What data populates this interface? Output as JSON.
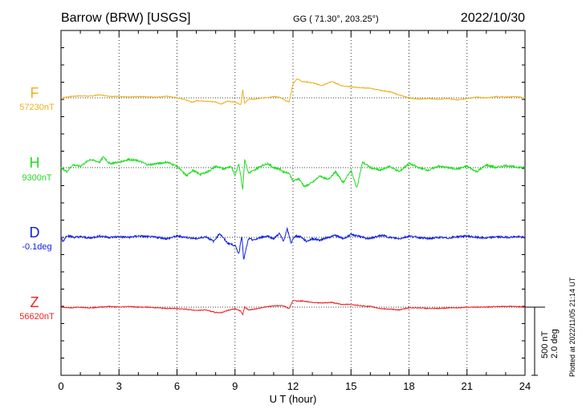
{
  "header": {
    "station": "Barrow (BRW)  [USGS]",
    "coords": "GG ( 71.30°, 203.25°)",
    "date": "2022/10/30"
  },
  "side_note": "Plotted at 2022/11/05 21:14 UT",
  "scale_bar": {
    "line1": "500 nT",
    "line2": "2.0 deg"
  },
  "chart_data": {
    "type": "line",
    "title": "Barrow (BRW)  [USGS]",
    "xlabel": "U T (hour)",
    "xlim": [
      0,
      24
    ],
    "x_ticks": [
      "0",
      "3",
      "6",
      "9",
      "12",
      "15",
      "18",
      "21",
      "24"
    ],
    "grid": true,
    "series": [
      {
        "name": "F",
        "baseline_label": "57230nT",
        "color": "#f0b020",
        "x": [
          0,
          0.5,
          1,
          1.5,
          2,
          2.5,
          3,
          3.5,
          4,
          4.5,
          5,
          5.5,
          6,
          6.5,
          6.8,
          7,
          7.5,
          8,
          8.3,
          8.6,
          9,
          9.3,
          9.4,
          9.5,
          9.7,
          10,
          10.5,
          11,
          11.3,
          11.6,
          11.8,
          12,
          12.2,
          12.5,
          13,
          13.5,
          14,
          14.5,
          15,
          15.5,
          16,
          16.5,
          17,
          17.5,
          18,
          18.5,
          19,
          19.5,
          20,
          20.5,
          21,
          21.5,
          22,
          22.5,
          23,
          23.5,
          24
        ],
        "values": [
          0,
          10,
          15,
          12,
          22,
          12,
          10,
          5,
          10,
          8,
          5,
          12,
          0,
          -15,
          -35,
          -20,
          -25,
          -30,
          -45,
          -25,
          -30,
          -50,
          60,
          -40,
          -10,
          -10,
          0,
          10,
          5,
          -20,
          -30,
          100,
          140,
          120,
          110,
          90,
          120,
          90,
          80,
          75,
          70,
          55,
          45,
          20,
          0,
          -10,
          -5,
          -10,
          -5,
          -15,
          -5,
          5,
          0,
          10,
          5,
          10,
          0
        ]
      },
      {
        "name": "H",
        "baseline_label": "9300nT",
        "color": "#22dd22",
        "x": [
          0,
          0.3,
          0.6,
          1,
          1.5,
          2,
          2.2,
          2.5,
          3,
          3.5,
          4,
          4.5,
          5,
          5.5,
          6,
          6.5,
          6.8,
          7.2,
          7.6,
          8,
          8.4,
          8.8,
          9,
          9.2,
          9.4,
          9.5,
          9.7,
          10,
          10.3,
          10.7,
          11,
          11.3,
          11.5,
          11.8,
          12,
          12.3,
          12.6,
          13,
          13.4,
          13.8,
          14.2,
          14.6,
          15,
          15.3,
          15.6,
          16,
          16.5,
          17,
          17.5,
          18,
          18.5,
          19,
          19.5,
          20,
          20.5,
          21,
          21.5,
          22,
          22.5,
          23,
          23.5,
          24
        ],
        "values": [
          0,
          -30,
          20,
          10,
          60,
          40,
          80,
          30,
          40,
          60,
          50,
          20,
          30,
          40,
          10,
          -60,
          -20,
          -50,
          -30,
          10,
          -10,
          10,
          -60,
          30,
          -160,
          60,
          -40,
          -20,
          10,
          30,
          0,
          -10,
          -30,
          -40,
          -100,
          -80,
          -140,
          -110,
          -60,
          -90,
          -30,
          -110,
          -20,
          -150,
          40,
          0,
          -20,
          10,
          -30,
          30,
          0,
          -20,
          10,
          0,
          -10,
          10,
          -30,
          20,
          0,
          15,
          5,
          0
        ]
      },
      {
        "name": "D",
        "baseline_label": "-0.1deg",
        "color": "#1122dd",
        "x": [
          0,
          0.1,
          0.3,
          0.7,
          1,
          1.5,
          2,
          2.5,
          3,
          3.5,
          4,
          4.5,
          5,
          5.5,
          6,
          6.5,
          7,
          7.5,
          7.9,
          8.2,
          8.6,
          9,
          9.2,
          9.35,
          9.45,
          9.55,
          9.7,
          10,
          10.3,
          10.7,
          11,
          11.3,
          11.5,
          11.7,
          11.9,
          12.1,
          12.4,
          12.7,
          13,
          13.4,
          13.8,
          14.2,
          14.6,
          15,
          15.4,
          15.8,
          16.2,
          16.6,
          17,
          17.5,
          18,
          18.5,
          19,
          19.5,
          20,
          20.5,
          21,
          21.5,
          22,
          22.5,
          23,
          23.5,
          24
        ],
        "values": [
          0,
          -30,
          15,
          0,
          5,
          -5,
          10,
          0,
          5,
          0,
          10,
          5,
          0,
          -10,
          10,
          0,
          -10,
          5,
          -30,
          30,
          -40,
          -60,
          -120,
          20,
          -170,
          -100,
          -10,
          -20,
          0,
          10,
          -10,
          30,
          -30,
          60,
          -40,
          10,
          5,
          -30,
          -10,
          -20,
          0,
          15,
          -10,
          20,
          10,
          -10,
          0,
          15,
          0,
          -10,
          10,
          0,
          -10,
          0,
          -5,
          5,
          10,
          0,
          -5,
          5,
          0,
          5,
          0
        ]
      },
      {
        "name": "Z",
        "baseline_label": "56620nT",
        "color": "#ee2222",
        "x": [
          0,
          0.5,
          1,
          1.5,
          2,
          2.5,
          3,
          3.5,
          4,
          4.5,
          5,
          5.5,
          6,
          6.5,
          7,
          7.5,
          8,
          8.3,
          8.6,
          9,
          9.3,
          9.4,
          9.5,
          9.7,
          10,
          10.5,
          11,
          11.5,
          11.8,
          12,
          12.2,
          12.5,
          13,
          13.5,
          14,
          14.5,
          15,
          15.5,
          16,
          16.5,
          17,
          17.5,
          18,
          18.5,
          19,
          19.5,
          20,
          20.5,
          21,
          21.5,
          22,
          22.5,
          23,
          23.5,
          24
        ],
        "values": [
          0,
          -5,
          0,
          -5,
          0,
          5,
          0,
          5,
          0,
          0,
          -5,
          -10,
          -10,
          -15,
          -25,
          -20,
          -40,
          -40,
          -25,
          -10,
          -30,
          -55,
          0,
          -20,
          -15,
          0,
          10,
          10,
          -10,
          50,
          45,
          45,
          35,
          30,
          35,
          20,
          20,
          10,
          5,
          -10,
          -15,
          -20,
          -5,
          -5,
          -10,
          -10,
          -5,
          -5,
          0,
          0,
          0,
          5,
          5,
          5,
          0
        ]
      }
    ]
  }
}
